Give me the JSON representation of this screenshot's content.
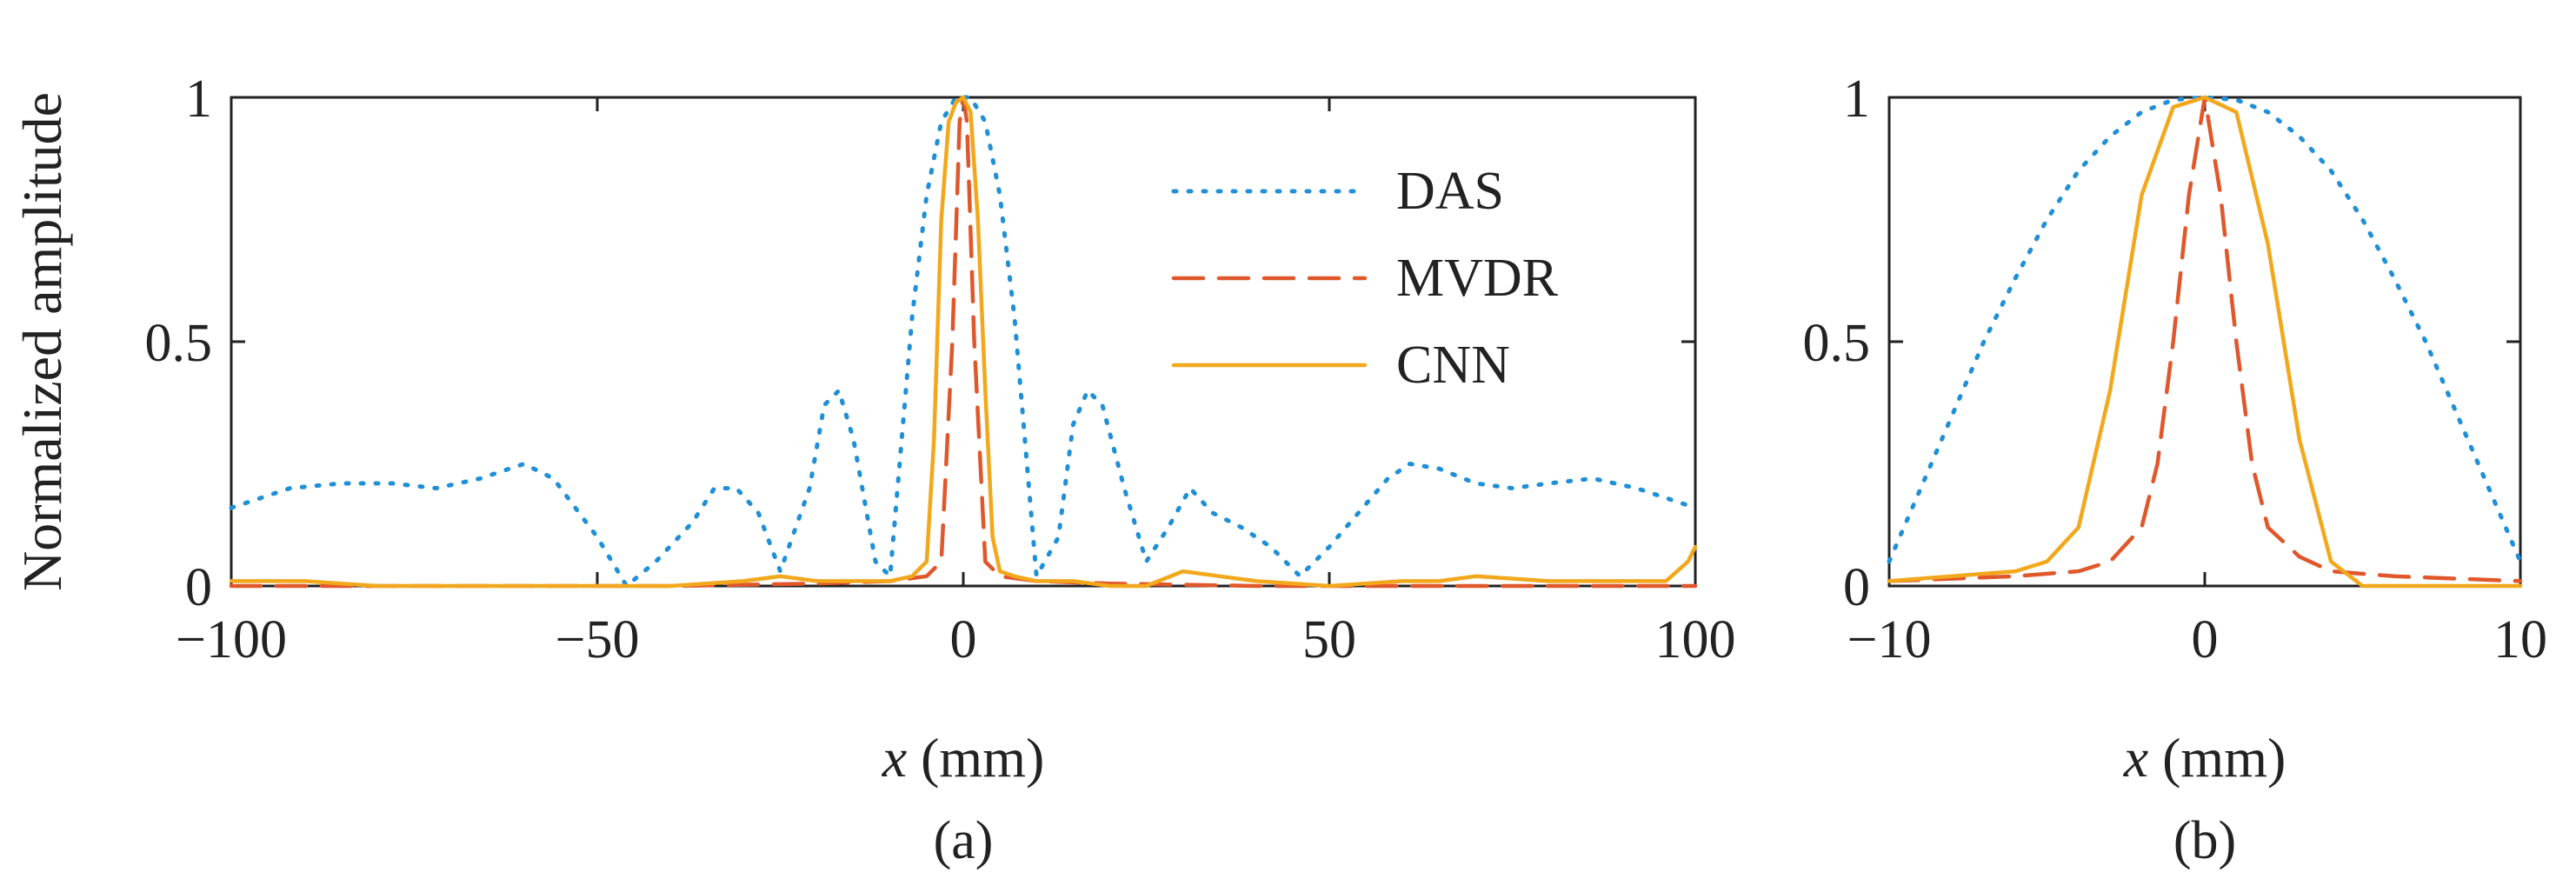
{
  "chart_data": [
    {
      "type": "line",
      "panel_label": "(a)",
      "xlabel_var": "x",
      "xlabel_unit": " (mm)",
      "ylabel": "Normalized amplitude",
      "xlim": [
        -100,
        100
      ],
      "ylim": [
        0,
        1
      ],
      "xticks": [
        -100,
        -50,
        0,
        50,
        100
      ],
      "xtick_labels": [
        "−100",
        "−50",
        "0",
        "50",
        "100"
      ],
      "yticks": [
        0,
        0.5,
        1
      ],
      "ytick_labels": [
        "0",
        "0.5",
        "1"
      ],
      "legend": {
        "position": "top-right",
        "entries": [
          "DAS",
          "MVDR",
          "CNN"
        ]
      },
      "series": [
        {
          "name": "DAS",
          "color": "#1f8fd6",
          "style": "dotted",
          "x": [
            -100,
            -92,
            -85,
            -78,
            -72,
            -66,
            -60,
            -56,
            -50,
            -46,
            -42,
            -37,
            -34,
            -31,
            -28,
            -25,
            -21,
            -19,
            -17,
            -15,
            -12,
            -10,
            -7,
            -5,
            -3,
            -1,
            0,
            1,
            3,
            5,
            7,
            10,
            13,
            15,
            17,
            19,
            22,
            25,
            28,
            31,
            34,
            38,
            42,
            46,
            50,
            54,
            58,
            61,
            65,
            70,
            75,
            80,
            86,
            92,
            96,
            100
          ],
          "y": [
            0.16,
            0.2,
            0.21,
            0.21,
            0.2,
            0.22,
            0.25,
            0.22,
            0.1,
            0.0,
            0.05,
            0.13,
            0.2,
            0.2,
            0.15,
            0.03,
            0.2,
            0.37,
            0.4,
            0.3,
            0.05,
            0.02,
            0.55,
            0.8,
            0.95,
            1.0,
            1.0,
            1.0,
            0.95,
            0.8,
            0.55,
            0.02,
            0.1,
            0.33,
            0.4,
            0.37,
            0.2,
            0.05,
            0.12,
            0.2,
            0.15,
            0.12,
            0.08,
            0.02,
            0.08,
            0.15,
            0.22,
            0.25,
            0.24,
            0.21,
            0.2,
            0.21,
            0.22,
            0.2,
            0.18,
            0.16
          ]
        },
        {
          "name": "MVDR",
          "color": "#e0572b",
          "style": "dashed",
          "x": [
            -100,
            -60,
            -40,
            -20,
            -10,
            -5,
            -3,
            -1.5,
            -0.5,
            0,
            0.5,
            1.5,
            3,
            5,
            10,
            20,
            40,
            60,
            80,
            100
          ],
          "y": [
            0.0,
            0.0,
            0.0,
            0.005,
            0.01,
            0.02,
            0.05,
            0.5,
            0.95,
            1.0,
            0.95,
            0.5,
            0.05,
            0.02,
            0.01,
            0.005,
            0.0,
            0.0,
            0.0,
            0.0
          ]
        },
        {
          "name": "CNN",
          "color": "#f2a81d",
          "style": "solid",
          "x": [
            -100,
            -90,
            -80,
            -70,
            -60,
            -50,
            -40,
            -30,
            -25,
            -20,
            -15,
            -10,
            -7,
            -5,
            -4,
            -3,
            -2,
            -1,
            0,
            1,
            2,
            3,
            4,
            5,
            7,
            10,
            15,
            20,
            25,
            30,
            35,
            40,
            50,
            60,
            65,
            70,
            80,
            90,
            96,
            99,
            100
          ],
          "y": [
            0.01,
            0.01,
            0.0,
            0.0,
            0.0,
            0.0,
            0.0,
            0.01,
            0.02,
            0.01,
            0.01,
            0.01,
            0.02,
            0.05,
            0.3,
            0.75,
            0.95,
            0.99,
            1.0,
            0.97,
            0.75,
            0.4,
            0.1,
            0.03,
            0.02,
            0.01,
            0.01,
            0.0,
            0.0,
            0.03,
            0.02,
            0.01,
            0.0,
            0.01,
            0.01,
            0.02,
            0.01,
            0.01,
            0.01,
            0.05,
            0.08
          ]
        }
      ]
    },
    {
      "type": "line",
      "panel_label": "(b)",
      "xlabel_var": "x",
      "xlabel_unit": " (mm)",
      "ylabel": "",
      "xlim": [
        -10,
        10
      ],
      "ylim": [
        0,
        1
      ],
      "xticks": [
        -10,
        0,
        10
      ],
      "xtick_labels": [
        "−10",
        "0",
        "10"
      ],
      "yticks": [
        0,
        0.5,
        1
      ],
      "ytick_labels": [
        "0",
        "0.5",
        "1"
      ],
      "series": [
        {
          "name": "DAS",
          "color": "#1f8fd6",
          "style": "dotted",
          "x": [
            -10,
            -9,
            -8,
            -7,
            -6,
            -5,
            -4,
            -3,
            -2,
            -1,
            0,
            1,
            2,
            3,
            4,
            5,
            6,
            7,
            8,
            9,
            10
          ],
          "y": [
            0.05,
            0.2,
            0.35,
            0.5,
            0.63,
            0.75,
            0.85,
            0.92,
            0.97,
            0.995,
            1.0,
            0.995,
            0.97,
            0.92,
            0.85,
            0.75,
            0.63,
            0.5,
            0.35,
            0.2,
            0.05
          ]
        },
        {
          "name": "MVDR",
          "color": "#e0572b",
          "style": "dashed",
          "x": [
            -10,
            -8,
            -6,
            -4,
            -3,
            -2,
            -1.5,
            -1,
            -0.5,
            0,
            0.5,
            1,
            1.5,
            2,
            3,
            4,
            6,
            8,
            10
          ],
          "y": [
            0.01,
            0.015,
            0.02,
            0.03,
            0.05,
            0.12,
            0.25,
            0.5,
            0.8,
            1.0,
            0.8,
            0.5,
            0.25,
            0.12,
            0.06,
            0.03,
            0.02,
            0.015,
            0.01
          ]
        },
        {
          "name": "CNN",
          "color": "#f2a81d",
          "style": "solid",
          "x": [
            -10,
            -8,
            -6,
            -5,
            -4,
            -3,
            -2,
            -1,
            0,
            1,
            2,
            3,
            4,
            5,
            6,
            8,
            10
          ],
          "y": [
            0.01,
            0.02,
            0.03,
            0.05,
            0.12,
            0.4,
            0.8,
            0.98,
            1.0,
            0.97,
            0.7,
            0.3,
            0.05,
            0.0,
            0.0,
            0.0,
            0.0
          ]
        }
      ]
    }
  ]
}
